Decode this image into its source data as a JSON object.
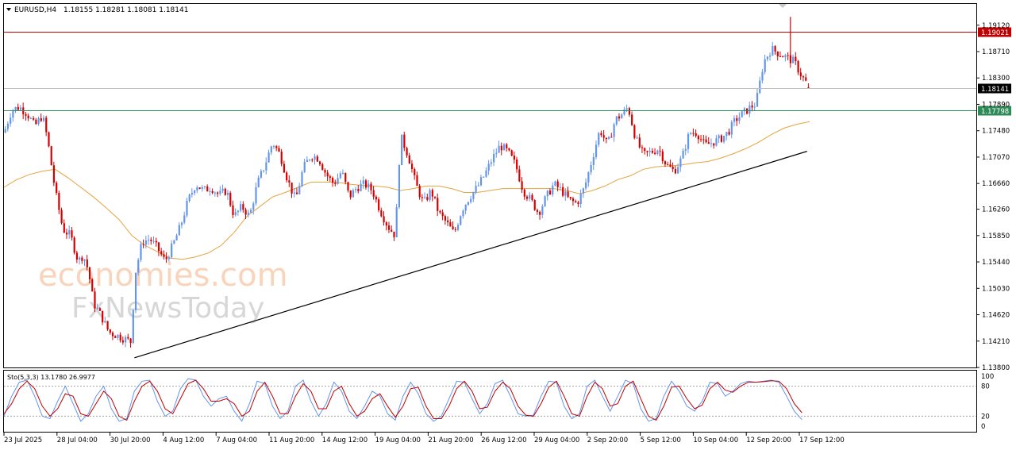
{
  "header": {
    "symbol": "EURUSD,H4",
    "ohlc": "1.18155 1.18281 1.18081 1.18141"
  },
  "watermark": {
    "line1": "economies.com",
    "line2": "FxNewsToday"
  },
  "colors": {
    "bull": "#6495ed",
    "bear": "#d40000",
    "ma": "#e6a33c",
    "resistance": "#c00000",
    "support": "#2e8b57",
    "trendline": "#000000",
    "stoch_main": "#6495ed",
    "stoch_signal": "#c00000",
    "bid_line": "#c0c0c0"
  },
  "price_axis": {
    "ticks": [
      "1.19120",
      "1.18710",
      "1.18300",
      "1.17890",
      "1.17480",
      "1.17070",
      "1.16660",
      "1.16260",
      "1.15850",
      "1.15440",
      "1.15030",
      "1.14620",
      "1.14210",
      "1.13800"
    ]
  },
  "time_axis": {
    "labels": [
      "23 Jul 2025",
      "28 Jul 04:00",
      "30 Jul 20:00",
      "4 Aug 12:00",
      "7 Aug 04:00",
      "11 Aug 20:00",
      "14 Aug 12:00",
      "19 Aug 04:00",
      "21 Aug 20:00",
      "26 Aug 12:00",
      "29 Aug 04:00",
      "2 Sep 20:00",
      "5 Sep 12:00",
      "10 Sep 04:00",
      "12 Sep 20:00",
      "17 Sep 12:00"
    ]
  },
  "stochastic": {
    "label": "Sto(5,3,3) 13.1780 26.9977",
    "ticks": [
      "100",
      "80",
      "20",
      "0"
    ],
    "levels": [
      80,
      20
    ]
  },
  "chart_data": {
    "type": "candlestick",
    "symbol": "EURUSD",
    "timeframe": "H4",
    "ohlc_last": {
      "open": 1.18155,
      "high": 1.18281,
      "low": 1.18081,
      "close": 1.18141
    },
    "ylim": [
      1.138,
      1.1945
    ],
    "horizontal_lines": [
      {
        "label": "1.19021",
        "value": 1.19021,
        "role": "resistance"
      },
      {
        "label": "1.18141",
        "value": 1.18141,
        "role": "current"
      },
      {
        "label": "1.17798",
        "value": 1.17798,
        "role": "support"
      }
    ],
    "trendline": {
      "from_value": 1.1395,
      "to_value": 1.1716,
      "label": ""
    },
    "price_path": [
      [
        0,
        1.1745
      ],
      [
        6,
        1.178
      ],
      [
        12,
        1.1785
      ],
      [
        18,
        1.1775
      ],
      [
        24,
        1.1755
      ],
      [
        30,
        1.1772
      ],
      [
        34,
        1.1735
      ],
      [
        40,
        1.1655
      ],
      [
        46,
        1.1595
      ],
      [
        52,
        1.1585
      ],
      [
        58,
        1.1545
      ],
      [
        62,
        1.1555
      ],
      [
        66,
        1.153
      ],
      [
        70,
        1.148
      ],
      [
        76,
        1.146
      ],
      [
        82,
        1.1435
      ],
      [
        88,
        1.143
      ],
      [
        94,
        1.1425
      ],
      [
        99,
        1.142
      ],
      [
        103,
        1.153
      ],
      [
        108,
        1.1575
      ],
      [
        114,
        1.158
      ],
      [
        120,
        1.1565
      ],
      [
        126,
        1.1545
      ],
      [
        132,
        1.157
      ],
      [
        138,
        1.16
      ],
      [
        144,
        1.164
      ],
      [
        150,
        1.1665
      ],
      [
        156,
        1.1655
      ],
      [
        162,
        1.166
      ],
      [
        168,
        1.1648
      ],
      [
        174,
        1.1655
      ],
      [
        180,
        1.1615
      ],
      [
        186,
        1.163
      ],
      [
        192,
        1.1615
      ],
      [
        198,
        1.1665
      ],
      [
        204,
        1.1695
      ],
      [
        210,
        1.173
      ],
      [
        216,
        1.171
      ],
      [
        222,
        1.167
      ],
      [
        228,
        1.164
      ],
      [
        234,
        1.169
      ],
      [
        240,
        1.171
      ],
      [
        246,
        1.1705
      ],
      [
        252,
        1.168
      ],
      [
        258,
        1.1665
      ],
      [
        264,
        1.1685
      ],
      [
        270,
        1.1645
      ],
      [
        276,
        1.166
      ],
      [
        282,
        1.1665
      ],
      [
        288,
        1.1655
      ],
      [
        294,
        1.1625
      ],
      [
        300,
        1.16
      ],
      [
        306,
        1.1585
      ],
      [
        310,
        1.174
      ],
      [
        316,
        1.171
      ],
      [
        322,
        1.1665
      ],
      [
        328,
        1.1635
      ],
      [
        334,
        1.1655
      ],
      [
        340,
        1.162
      ],
      [
        346,
        1.1605
      ],
      [
        352,
        1.1588
      ],
      [
        358,
        1.1625
      ],
      [
        364,
        1.1645
      ],
      [
        370,
        1.166
      ],
      [
        376,
        1.168
      ],
      [
        382,
        1.1705
      ],
      [
        388,
        1.1725
      ],
      [
        394,
        1.1715
      ],
      [
        400,
        1.1695
      ],
      [
        406,
        1.1655
      ],
      [
        412,
        1.164
      ],
      [
        418,
        1.162
      ],
      [
        424,
        1.1645
      ],
      [
        430,
        1.1665
      ],
      [
        436,
        1.1655
      ],
      [
        442,
        1.164
      ],
      [
        448,
        1.1635
      ],
      [
        454,
        1.166
      ],
      [
        460,
        1.1705
      ],
      [
        466,
        1.175
      ],
      [
        472,
        1.1725
      ],
      [
        478,
        1.1765
      ],
      [
        484,
        1.1775
      ],
      [
        488,
        1.1785
      ],
      [
        494,
        1.1735
      ],
      [
        500,
        1.171
      ],
      [
        506,
        1.1715
      ],
      [
        512,
        1.172
      ],
      [
        518,
        1.1695
      ],
      [
        524,
        1.1685
      ],
      [
        530,
        1.1705
      ],
      [
        536,
        1.1745
      ],
      [
        542,
        1.1745
      ],
      [
        548,
        1.1725
      ],
      [
        554,
        1.173
      ],
      [
        560,
        1.1735
      ],
      [
        566,
        1.1745
      ],
      [
        572,
        1.1765
      ],
      [
        578,
        1.1775
      ],
      [
        584,
        1.1785
      ],
      [
        588,
        1.179
      ],
      [
        594,
        1.1855
      ],
      [
        600,
        1.1875
      ],
      [
        606,
        1.1868
      ],
      [
        612,
        1.1862
      ],
      [
        618,
        1.1855
      ],
      [
        624,
        1.1832
      ],
      [
        630,
        1.1815
      ]
    ],
    "moving_average": [
      [
        0,
        1.166
      ],
      [
        10,
        1.1672
      ],
      [
        20,
        1.168
      ],
      [
        30,
        1.1685
      ],
      [
        40,
        1.1688
      ],
      [
        50,
        1.1675
      ],
      [
        60,
        1.166
      ],
      [
        70,
        1.1645
      ],
      [
        80,
        1.1628
      ],
      [
        90,
        1.161
      ],
      [
        100,
        1.1585
      ],
      [
        110,
        1.157
      ],
      [
        120,
        1.156
      ],
      [
        130,
        1.155
      ],
      [
        140,
        1.1548
      ],
      [
        150,
        1.1552
      ],
      [
        160,
        1.1558
      ],
      [
        170,
        1.157
      ],
      [
        180,
        1.159
      ],
      [
        190,
        1.1615
      ],
      [
        200,
        1.163
      ],
      [
        210,
        1.1645
      ],
      [
        220,
        1.1652
      ],
      [
        230,
        1.166
      ],
      [
        240,
        1.1668
      ],
      [
        250,
        1.1668
      ],
      [
        260,
        1.1668
      ],
      [
        270,
        1.1665
      ],
      [
        280,
        1.1663
      ],
      [
        290,
        1.1662
      ],
      [
        300,
        1.166
      ],
      [
        310,
        1.1655
      ],
      [
        320,
        1.1658
      ],
      [
        330,
        1.1662
      ],
      [
        340,
        1.1662
      ],
      [
        350,
        1.1658
      ],
      [
        360,
        1.1652
      ],
      [
        370,
        1.1652
      ],
      [
        380,
        1.1655
      ],
      [
        390,
        1.1658
      ],
      [
        400,
        1.1658
      ],
      [
        410,
        1.1658
      ],
      [
        420,
        1.1658
      ],
      [
        430,
        1.1658
      ],
      [
        440,
        1.1655
      ],
      [
        450,
        1.165
      ],
      [
        460,
        1.1655
      ],
      [
        470,
        1.1662
      ],
      [
        480,
        1.1672
      ],
      [
        490,
        1.1678
      ],
      [
        500,
        1.1688
      ],
      [
        510,
        1.1692
      ],
      [
        520,
        1.1693
      ],
      [
        530,
        1.1695
      ],
      [
        540,
        1.1698
      ],
      [
        550,
        1.17
      ],
      [
        560,
        1.1705
      ],
      [
        570,
        1.1712
      ],
      [
        580,
        1.172
      ],
      [
        590,
        1.173
      ],
      [
        600,
        1.1742
      ],
      [
        610,
        1.1752
      ],
      [
        620,
        1.1758
      ],
      [
        630,
        1.1762
      ]
    ],
    "stochastic_main": [
      [
        0,
        20
      ],
      [
        6,
        60
      ],
      [
        12,
        88
      ],
      [
        18,
        92
      ],
      [
        24,
        60
      ],
      [
        30,
        20
      ],
      [
        36,
        15
      ],
      [
        42,
        50
      ],
      [
        48,
        80
      ],
      [
        54,
        45
      ],
      [
        60,
        10
      ],
      [
        66,
        25
      ],
      [
        72,
        60
      ],
      [
        78,
        80
      ],
      [
        84,
        35
      ],
      [
        90,
        10
      ],
      [
        96,
        15
      ],
      [
        102,
        70
      ],
      [
        108,
        90
      ],
      [
        114,
        92
      ],
      [
        120,
        50
      ],
      [
        126,
        20
      ],
      [
        132,
        30
      ],
      [
        138,
        75
      ],
      [
        144,
        95
      ],
      [
        150,
        92
      ],
      [
        156,
        60
      ],
      [
        162,
        40
      ],
      [
        168,
        55
      ],
      [
        174,
        60
      ],
      [
        180,
        30
      ],
      [
        186,
        10
      ],
      [
        192,
        45
      ],
      [
        198,
        90
      ],
      [
        204,
        85
      ],
      [
        210,
        40
      ],
      [
        216,
        15
      ],
      [
        222,
        30
      ],
      [
        228,
        80
      ],
      [
        234,
        92
      ],
      [
        240,
        50
      ],
      [
        246,
        20
      ],
      [
        252,
        45
      ],
      [
        258,
        88
      ],
      [
        264,
        70
      ],
      [
        270,
        30
      ],
      [
        276,
        15
      ],
      [
        282,
        40
      ],
      [
        288,
        70
      ],
      [
        294,
        60
      ],
      [
        300,
        25
      ],
      [
        306,
        12
      ],
      [
        312,
        60
      ],
      [
        318,
        88
      ],
      [
        324,
        65
      ],
      [
        330,
        25
      ],
      [
        336,
        10
      ],
      [
        342,
        20
      ],
      [
        348,
        55
      ],
      [
        354,
        90
      ],
      [
        360,
        88
      ],
      [
        366,
        55
      ],
      [
        372,
        25
      ],
      [
        378,
        45
      ],
      [
        384,
        85
      ],
      [
        390,
        92
      ],
      [
        396,
        60
      ],
      [
        402,
        25
      ],
      [
        408,
        20
      ],
      [
        414,
        22
      ],
      [
        420,
        60
      ],
      [
        426,
        90
      ],
      [
        432,
        88
      ],
      [
        438,
        40
      ],
      [
        444,
        15
      ],
      [
        450,
        25
      ],
      [
        456,
        80
      ],
      [
        462,
        92
      ],
      [
        468,
        60
      ],
      [
        474,
        30
      ],
      [
        480,
        60
      ],
      [
        486,
        92
      ],
      [
        492,
        85
      ],
      [
        498,
        35
      ],
      [
        504,
        10
      ],
      [
        510,
        15
      ],
      [
        516,
        60
      ],
      [
        522,
        90
      ],
      [
        528,
        70
      ],
      [
        534,
        40
      ],
      [
        540,
        30
      ],
      [
        546,
        50
      ],
      [
        552,
        88
      ],
      [
        558,
        85
      ],
      [
        564,
        60
      ],
      [
        570,
        70
      ],
      [
        576,
        85
      ],
      [
        582,
        90
      ],
      [
        588,
        88
      ],
      [
        594,
        90
      ],
      [
        600,
        92
      ],
      [
        606,
        88
      ],
      [
        612,
        60
      ],
      [
        618,
        30
      ],
      [
        624,
        13
      ]
    ],
    "stochastic_signal": [
      [
        0,
        25
      ],
      [
        6,
        45
      ],
      [
        12,
        75
      ],
      [
        18,
        90
      ],
      [
        24,
        75
      ],
      [
        30,
        40
      ],
      [
        36,
        20
      ],
      [
        42,
        35
      ],
      [
        48,
        65
      ],
      [
        54,
        60
      ],
      [
        60,
        25
      ],
      [
        66,
        20
      ],
      [
        72,
        45
      ],
      [
        78,
        70
      ],
      [
        84,
        55
      ],
      [
        90,
        20
      ],
      [
        96,
        12
      ],
      [
        102,
        50
      ],
      [
        108,
        80
      ],
      [
        114,
        90
      ],
      [
        120,
        70
      ],
      [
        126,
        35
      ],
      [
        132,
        25
      ],
      [
        138,
        55
      ],
      [
        144,
        85
      ],
      [
        150,
        92
      ],
      [
        156,
        75
      ],
      [
        162,
        50
      ],
      [
        168,
        50
      ],
      [
        174,
        55
      ],
      [
        180,
        45
      ],
      [
        186,
        20
      ],
      [
        192,
        30
      ],
      [
        198,
        70
      ],
      [
        204,
        88
      ],
      [
        210,
        60
      ],
      [
        216,
        25
      ],
      [
        222,
        25
      ],
      [
        228,
        60
      ],
      [
        234,
        85
      ],
      [
        240,
        70
      ],
      [
        246,
        35
      ],
      [
        252,
        35
      ],
      [
        258,
        70
      ],
      [
        264,
        80
      ],
      [
        270,
        45
      ],
      [
        276,
        20
      ],
      [
        282,
        30
      ],
      [
        288,
        55
      ],
      [
        294,
        65
      ],
      [
        300,
        40
      ],
      [
        306,
        18
      ],
      [
        312,
        40
      ],
      [
        318,
        75
      ],
      [
        324,
        78
      ],
      [
        330,
        40
      ],
      [
        336,
        15
      ],
      [
        342,
        15
      ],
      [
        348,
        40
      ],
      [
        354,
        75
      ],
      [
        360,
        90
      ],
      [
        366,
        70
      ],
      [
        372,
        35
      ],
      [
        378,
        38
      ],
      [
        384,
        70
      ],
      [
        390,
        88
      ],
      [
        396,
        75
      ],
      [
        402,
        40
      ],
      [
        408,
        22
      ],
      [
        414,
        20
      ],
      [
        420,
        45
      ],
      [
        426,
        78
      ],
      [
        432,
        90
      ],
      [
        438,
        60
      ],
      [
        444,
        25
      ],
      [
        450,
        20
      ],
      [
        456,
        60
      ],
      [
        462,
        88
      ],
      [
        468,
        75
      ],
      [
        474,
        40
      ],
      [
        480,
        45
      ],
      [
        486,
        80
      ],
      [
        492,
        90
      ],
      [
        498,
        55
      ],
      [
        504,
        20
      ],
      [
        510,
        12
      ],
      [
        516,
        40
      ],
      [
        522,
        78
      ],
      [
        528,
        80
      ],
      [
        534,
        55
      ],
      [
        540,
        35
      ],
      [
        546,
        42
      ],
      [
        552,
        75
      ],
      [
        558,
        88
      ],
      [
        564,
        72
      ],
      [
        570,
        68
      ],
      [
        576,
        80
      ],
      [
        582,
        88
      ],
      [
        588,
        88
      ],
      [
        594,
        89
      ],
      [
        600,
        91
      ],
      [
        606,
        90
      ],
      [
        612,
        75
      ],
      [
        618,
        45
      ],
      [
        624,
        27
      ]
    ]
  }
}
